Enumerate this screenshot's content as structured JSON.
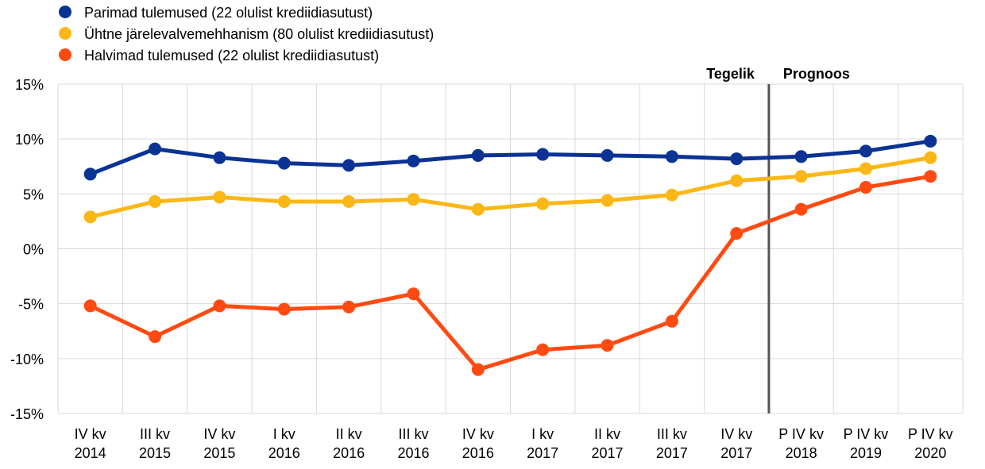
{
  "chart_data": {
    "type": "line",
    "categories": [
      [
        "IV kv",
        "2014"
      ],
      [
        "III kv",
        "2015"
      ],
      [
        "IV kv",
        "2015"
      ],
      [
        "I kv",
        "2016"
      ],
      [
        "II kv",
        "2016"
      ],
      [
        "III kv",
        "2016"
      ],
      [
        "IV kv",
        "2016"
      ],
      [
        "I kv",
        "2017"
      ],
      [
        "II kv",
        "2017"
      ],
      [
        "III kv",
        "2017"
      ],
      [
        "IV kv",
        "2017"
      ],
      [
        "P IV kv",
        "2018"
      ],
      [
        "P IV kv",
        "2019"
      ],
      [
        "P IV kv",
        "2020"
      ]
    ],
    "series": [
      {
        "name": "Parimad tulemused (22 olulist krediidiasutust)",
        "color": "#0b3394",
        "values": [
          6.8,
          9.1,
          8.3,
          7.8,
          7.6,
          8.0,
          8.5,
          8.6,
          8.5,
          8.4,
          8.2,
          8.4,
          8.9,
          9.8
        ]
      },
      {
        "name": "Ühtne järelevalvemehhanism (80 olulist krediidiasutust)",
        "color": "#fbb716",
        "values": [
          2.9,
          4.3,
          4.7,
          4.3,
          4.3,
          4.5,
          3.6,
          4.1,
          4.4,
          4.9,
          6.2,
          6.6,
          7.3,
          8.3
        ]
      },
      {
        "name": "Halvimad tulemused (22 olulist krediidiasutust)",
        "color": "#ff4b12",
        "values": [
          -5.2,
          -8.0,
          -5.2,
          -5.5,
          -5.3,
          -4.1,
          -11.0,
          -9.2,
          -8.8,
          -6.6,
          1.4,
          3.6,
          5.6,
          6.6
        ]
      }
    ],
    "y_ticks": [
      "-15%",
      "-10%",
      "-5%",
      "0%",
      "5%",
      "10%",
      "15%"
    ],
    "ylim": [
      -15,
      15
    ],
    "y_step": 5,
    "grid": true,
    "legend_position": "top-left",
    "divider_after_index": 10,
    "period_labels": {
      "actual": "Tegelik",
      "forecast": "Prognoos"
    }
  }
}
